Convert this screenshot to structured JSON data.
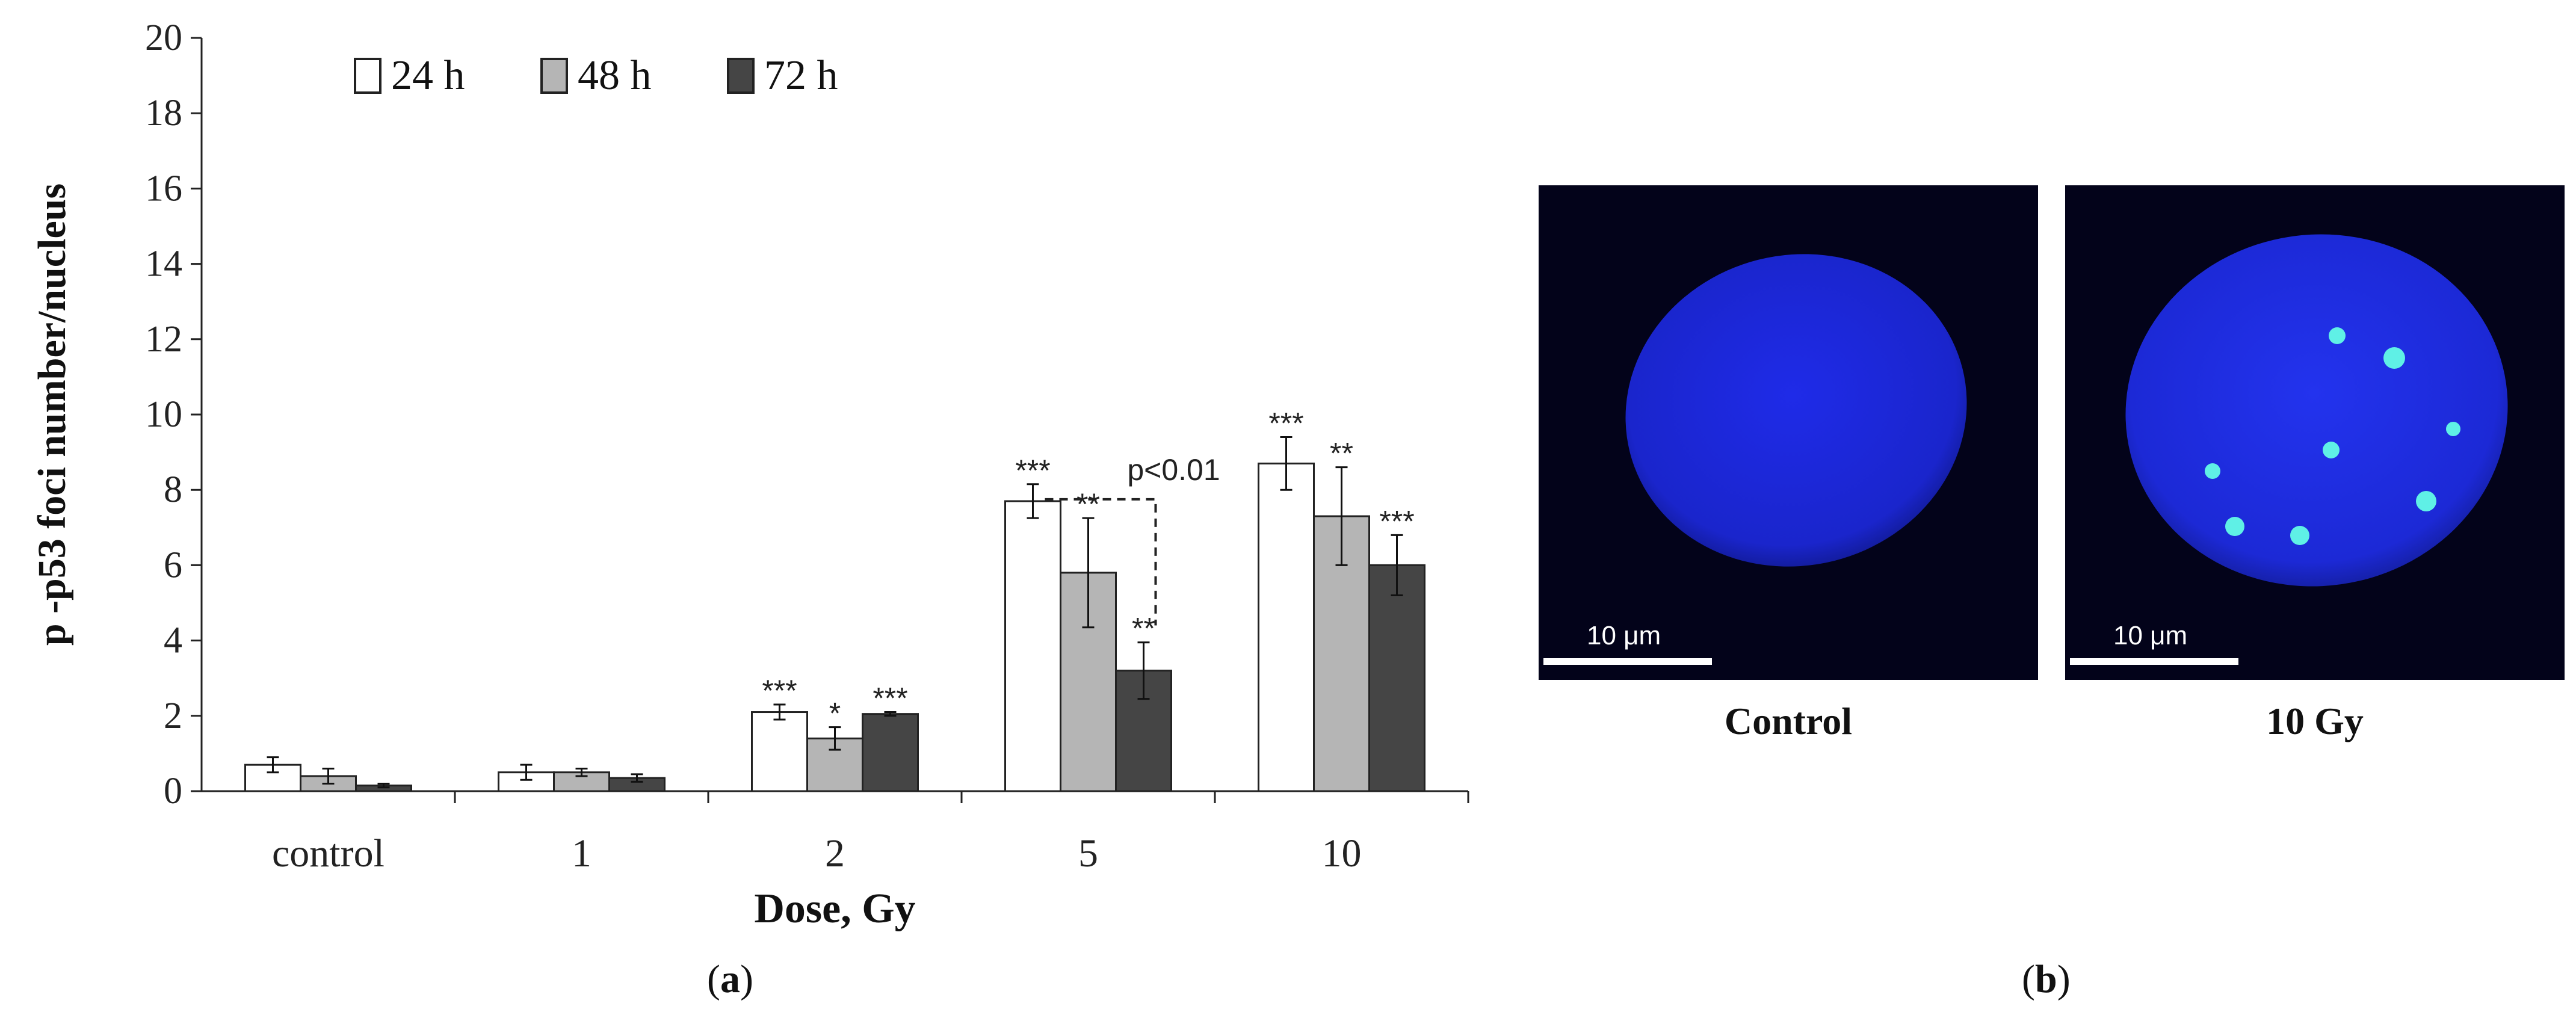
{
  "chart_data": {
    "type": "bar",
    "title": "",
    "xlabel": "Dose, Gy",
    "ylabel": "p -p53 foci number/nucleus",
    "ylim": [
      0,
      20
    ],
    "yticks": [
      0,
      2,
      4,
      6,
      8,
      10,
      12,
      14,
      16,
      18,
      20
    ],
    "categories": [
      "control",
      "1",
      "2",
      "5",
      "10"
    ],
    "legend_position": "top-left",
    "series": [
      {
        "name": "24 h",
        "color": "#ffffff",
        "values": [
          0.7,
          0.5,
          2.1,
          7.7,
          8.7
        ],
        "errors": [
          0.2,
          0.2,
          0.2,
          0.45,
          0.7
        ],
        "significance": [
          "",
          "",
          "***",
          "***",
          "***"
        ]
      },
      {
        "name": "48 h",
        "color": "#b5b5b5",
        "values": [
          0.4,
          0.5,
          1.4,
          5.8,
          7.3
        ],
        "errors": [
          0.2,
          0.1,
          0.3,
          1.45,
          1.3
        ],
        "significance": [
          "",
          "",
          "*",
          "**",
          "**"
        ]
      },
      {
        "name": "72 h",
        "color": "#454545",
        "values": [
          0.15,
          0.35,
          2.05,
          3.2,
          6.0
        ],
        "errors": [
          0.05,
          0.1,
          0.05,
          0.75,
          0.8
        ],
        "significance": [
          "",
          "",
          "***",
          "**",
          "***"
        ]
      }
    ],
    "annotations": [
      {
        "text": "p<0.01",
        "between": {
          "category": "5",
          "series": [
            "24 h",
            "72 h"
          ]
        }
      }
    ],
    "grid": false
  },
  "panel_b": {
    "images": [
      {
        "label": "Control",
        "scale_label": "10 μm"
      },
      {
        "label": "10 Gy",
        "scale_label": "10 μm"
      }
    ],
    "colors": {
      "nucleus": "#1f2bdc",
      "foci": "#5ff0e6",
      "background": "#03031a"
    }
  },
  "panel_labels": {
    "a": "a",
    "b": "b"
  }
}
